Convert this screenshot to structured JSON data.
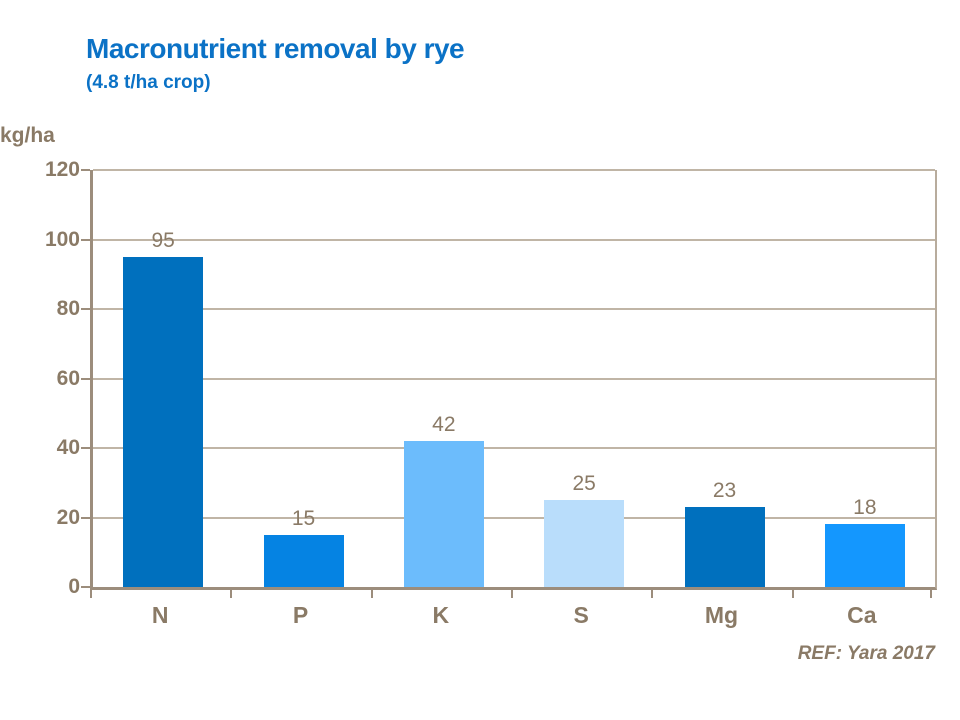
{
  "slide": {
    "title": "Macronutrient removal by rye",
    "subtitle": "(4.8 t/ha crop)",
    "reference": "REF: Yara 2017"
  },
  "colors": {
    "title_blue": "#0B72C6",
    "text_brown": "#8A7A66",
    "axis_line": "#9C8D7C",
    "gridline": "#C0B5A6"
  },
  "chart_data": {
    "type": "bar",
    "title": "Macronutrient removal by rye",
    "subtitle": "(4.8 t/ha crop)",
    "categories": [
      "N",
      "P",
      "K",
      "S",
      "Mg",
      "Ca"
    ],
    "values": [
      95,
      15,
      42,
      25,
      23,
      18
    ],
    "bar_colors": [
      "#0070BE",
      "#0583E3",
      "#6CBCFC",
      "#B9DDFB",
      "#0070BE",
      "#1497FE"
    ],
    "value_labels": [
      "95",
      "15",
      "42",
      "25",
      "23",
      "18"
    ],
    "xlabel": "",
    "ylabel": "kg/ha",
    "ylim": [
      0,
      120
    ],
    "ytick_step": 20,
    "ytick_labels": [
      "0",
      "20",
      "40",
      "60",
      "80",
      "100",
      "120"
    ],
    "grid": true,
    "legend": false,
    "annotation": "REF: Yara 2017"
  }
}
